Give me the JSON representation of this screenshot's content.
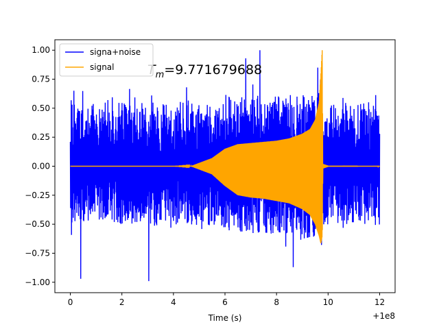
{
  "chart_data": {
    "type": "line",
    "title": "",
    "xlabel": "Time (s)",
    "ylabel": "",
    "x_offset_label": "+1e8",
    "xlim": [
      -0.6,
      12.6
    ],
    "ylim": [
      -1.09,
      1.09
    ],
    "xticks": [
      0,
      2,
      4,
      6,
      8,
      10,
      12
    ],
    "xtick_labels": [
      "0",
      "2",
      "4",
      "6",
      "8",
      "10",
      "12"
    ],
    "yticks": [
      -1.0,
      -0.75,
      -0.5,
      -0.25,
      0.0,
      0.25,
      0.5,
      0.75,
      1.0
    ],
    "ytick_labels": [
      "−1.00",
      "−0.75",
      "−0.50",
      "−0.25",
      "0.00",
      "0.25",
      "0.50",
      "0.75",
      "1.00"
    ],
    "grid": false,
    "legend_position": "top-left",
    "annotation": {
      "text_base": "T",
      "text_sub": "m",
      "text_value": "=9.771679688",
      "x": 3.05,
      "y": 0.81
    },
    "series": [
      {
        "name": "signa+noise",
        "color": "#0000ff",
        "description_envelope": {
          "x": [
            0,
            12
          ],
          "typical_max": 0.55,
          "typical_min": -0.5,
          "peaks": [
            {
              "x": 0.4,
              "y": -0.97
            },
            {
              "x": 3.05,
              "y": -0.99
            },
            {
              "x": 7.35,
              "y": 1.0
            },
            {
              "x": 6.8,
              "y": 0.93
            },
            {
              "x": 8.65,
              "y": -0.87
            },
            {
              "x": 9.6,
              "y": 0.85
            }
          ]
        }
      },
      {
        "name": "signal",
        "color": "#ffa500",
        "envelope": {
          "x": [
            0,
            4,
            4.7,
            5.5,
            6.0,
            6.5,
            7.0,
            7.5,
            8.0,
            8.5,
            9.0,
            9.3,
            9.5,
            9.65,
            9.72,
            9.77,
            9.8,
            10.0,
            12.0
          ],
          "upper": [
            0,
            0,
            0.003,
            0.07,
            0.15,
            0.19,
            0.2,
            0.21,
            0.22,
            0.24,
            0.28,
            0.32,
            0.4,
            0.55,
            0.8,
            1.0,
            0.02,
            0.005,
            0.003
          ],
          "lower": [
            0,
            0,
            -0.003,
            -0.07,
            -0.17,
            -0.25,
            -0.27,
            -0.28,
            -0.3,
            -0.32,
            -0.37,
            -0.42,
            -0.5,
            -0.6,
            -0.67,
            -0.61,
            -0.02,
            -0.005,
            -0.003
          ]
        }
      }
    ]
  }
}
